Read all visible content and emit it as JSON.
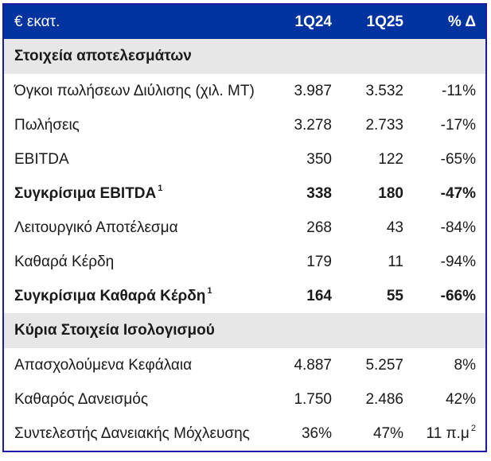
{
  "colors": {
    "header_bg": "#0032a0",
    "header_text": "#ffffff",
    "section_bg": "#e8e7e8",
    "border": "#1c1ca3",
    "body_text": "#1a1a1a"
  },
  "table": {
    "header": {
      "unit": "€ εκατ.",
      "col_1q24": "1Q24",
      "col_1q25": "1Q25",
      "col_delta": "% Δ"
    },
    "sections": [
      {
        "title": "Στοιχεία αποτελεσμάτων",
        "rows": [
          {
            "label": "Όγκοι πωλήσεων Διύλισης (χιλ. MT)",
            "label_sup": "",
            "q1_24": "3.987",
            "q1_25": "3.532",
            "delta": "-11%",
            "delta_sup": ""
          },
          {
            "label": "Πωλήσεις",
            "label_sup": "",
            "q1_24": "3.278",
            "q1_25": "2.733",
            "delta": "-17%",
            "delta_sup": ""
          },
          {
            "label": "EBITDA",
            "label_sup": "",
            "q1_24": "350",
            "q1_25": "122",
            "delta": "-65%",
            "delta_sup": ""
          },
          {
            "label": "Συγκρίσιμα EBITDA",
            "label_sup": "1",
            "q1_24": "338",
            "q1_25": "180",
            "delta": "-47%",
            "delta_sup": ""
          },
          {
            "label": "Λειτουργικό Αποτέλεσμα",
            "label_sup": "",
            "q1_24": "268",
            "q1_25": "43",
            "delta": "-84%",
            "delta_sup": ""
          },
          {
            "label": "Καθαρά Κέρδη",
            "label_sup": "",
            "q1_24": "179",
            "q1_25": "11",
            "delta": "-94%",
            "delta_sup": ""
          },
          {
            "label": "Συγκρίσιμα Καθαρά Κέρδη",
            "label_sup": "1",
            "q1_24": "164",
            "q1_25": "55",
            "delta": "-66%",
            "delta_sup": ""
          }
        ]
      },
      {
        "title": "Κύρια Στοιχεία Ισολογισμού",
        "rows": [
          {
            "label": "Απασχολούμενα Κεφάλαια",
            "label_sup": "",
            "q1_24": "4.887",
            "q1_25": "5.257",
            "delta": "8%",
            "delta_sup": ""
          },
          {
            "label": "Καθαρός Δανεισμός",
            "label_sup": "",
            "q1_24": "1.750",
            "q1_25": "2.486",
            "delta": "42%",
            "delta_sup": ""
          },
          {
            "label": "Συντελεστής Δανειακής Μόχλευσης",
            "label_sup": "",
            "q1_24": "36%",
            "q1_25": "47%",
            "delta": "11 π.μ",
            "delta_sup": "2"
          }
        ]
      }
    ]
  }
}
